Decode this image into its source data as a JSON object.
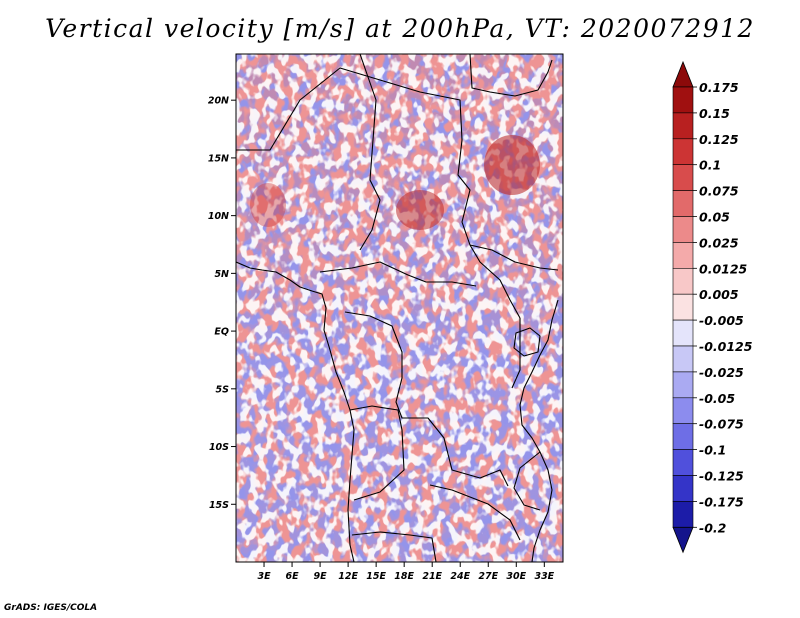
{
  "title": "Vertical velocity [m/s] at 200hPa, VT: 2020072912",
  "credit": "GrADS: IGES/COLA",
  "map": {
    "lat_range": [
      -20,
      24
    ],
    "lon_range": [
      0,
      35
    ],
    "lat_ticks": [
      {
        "value": 20,
        "label": "20N"
      },
      {
        "value": 15,
        "label": "15N"
      },
      {
        "value": 10,
        "label": "10N"
      },
      {
        "value": 5,
        "label": "5N"
      },
      {
        "value": 0,
        "label": "EQ"
      },
      {
        "value": -5,
        "label": "5S"
      },
      {
        "value": -10,
        "label": "10S"
      },
      {
        "value": -15,
        "label": "15S"
      }
    ],
    "lon_ticks": [
      {
        "value": 3,
        "label": "3E"
      },
      {
        "value": 6,
        "label": "6E"
      },
      {
        "value": 9,
        "label": "9E"
      },
      {
        "value": 12,
        "label": "12E"
      },
      {
        "value": 15,
        "label": "15E"
      },
      {
        "value": 18,
        "label": "18E"
      },
      {
        "value": 21,
        "label": "21E"
      },
      {
        "value": 24,
        "label": "24E"
      },
      {
        "value": 27,
        "label": "27E"
      },
      {
        "value": 30,
        "label": "30E"
      },
      {
        "value": 33,
        "label": "33E"
      }
    ]
  },
  "colorbar": {
    "levels": [
      {
        "label": "0.175",
        "color": "#a01010"
      },
      {
        "label": "0.15",
        "color": "#b82020"
      },
      {
        "label": "0.125",
        "color": "#cc3434"
      },
      {
        "label": "0.1",
        "color": "#d84c4c"
      },
      {
        "label": "0.075",
        "color": "#e26a6a"
      },
      {
        "label": "0.05",
        "color": "#ec8a8a"
      },
      {
        "label": "0.025",
        "color": "#f4aaaa"
      },
      {
        "label": "0.0125",
        "color": "#f8c8c8"
      },
      {
        "label": "0.005",
        "color": "#fbe2e2"
      },
      {
        "label": "-0.005",
        "color": "#ffffff"
      },
      {
        "label": "-0.0125",
        "color": "#e4e4fb"
      },
      {
        "label": "-0.025",
        "color": "#c8c8f6"
      },
      {
        "label": "-0.05",
        "color": "#aaaaf2"
      },
      {
        "label": "-0.075",
        "color": "#8c8cee"
      },
      {
        "label": "-0.1",
        "color": "#6e6ee6"
      },
      {
        "label": "-0.125",
        "color": "#5050dc"
      },
      {
        "label": "-0.175",
        "color": "#3434c8"
      },
      {
        "label": "-0.2",
        "color": "#1c1ca8"
      }
    ],
    "over_color": "#8c0a0a",
    "under_color": "#14148c"
  }
}
